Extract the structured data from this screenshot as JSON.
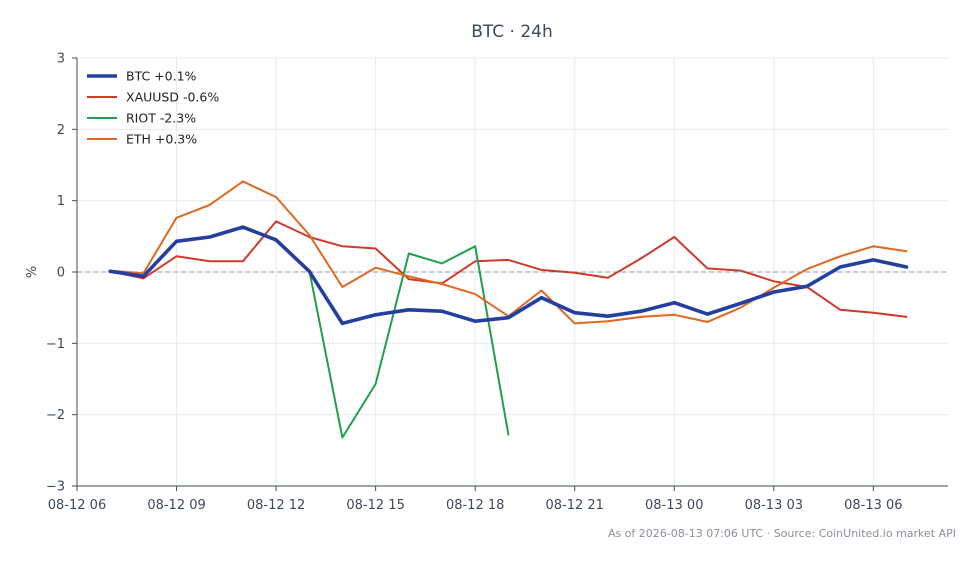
{
  "chart_data": {
    "type": "line",
    "title": "BTC · 24h",
    "xlabel": "",
    "ylabel": "%",
    "ylim": [
      -3,
      3
    ],
    "yticks": [
      -3,
      -2,
      -1,
      0,
      1,
      2,
      3
    ],
    "ytick_labels": [
      "−3",
      "−2",
      "−1",
      "0",
      "1",
      "2",
      "3"
    ],
    "xlim": [
      "2026-08-12 06:00",
      "2026-08-13 08:15"
    ],
    "xticks": [
      "2026-08-12 06:00",
      "2026-08-12 09:00",
      "2026-08-12 12:00",
      "2026-08-12 15:00",
      "2026-08-12 18:00",
      "2026-08-12 21:00",
      "2026-08-13 00:00",
      "2026-08-13 03:00",
      "2026-08-13 06:00"
    ],
    "xtick_labels": [
      "08-12 06",
      "08-12 09",
      "08-12 12",
      "08-12 15",
      "08-12 18",
      "08-12 21",
      "08-13 00",
      "08-13 03",
      "08-13 06"
    ],
    "x": [
      "2026-08-12 07:00",
      "2026-08-12 08:00",
      "2026-08-12 09:00",
      "2026-08-12 10:00",
      "2026-08-12 11:00",
      "2026-08-12 12:00",
      "2026-08-12 13:00",
      "2026-08-12 14:00",
      "2026-08-12 15:00",
      "2026-08-12 16:00",
      "2026-08-12 17:00",
      "2026-08-12 18:00",
      "2026-08-12 19:00",
      "2026-08-12 20:00",
      "2026-08-12 21:00",
      "2026-08-12 22:00",
      "2026-08-12 23:00",
      "2026-08-13 00:00",
      "2026-08-13 01:00",
      "2026-08-13 02:00",
      "2026-08-13 03:00",
      "2026-08-13 04:00",
      "2026-08-13 05:00",
      "2026-08-13 06:00",
      "2026-08-13 07:00"
    ],
    "grid": true,
    "reference_line": 0,
    "legend_position": "top-left",
    "series": [
      {
        "name": "BTC +0.1%",
        "color": "#2340a0",
        "values": [
          0.01,
          -0.06,
          0.43,
          0.49,
          0.63,
          0.45,
          0.01,
          -0.72,
          -0.6,
          -0.53,
          -0.55,
          -0.69,
          -0.64,
          -0.36,
          -0.57,
          -0.62,
          -0.55,
          -0.43,
          -0.59,
          -0.44,
          -0.28,
          -0.2,
          0.07,
          0.17,
          0.07
        ]
      },
      {
        "name": "XAUUSD -0.6%",
        "color": "#d03a2a",
        "values": [
          0.01,
          -0.09,
          0.22,
          0.15,
          0.15,
          0.71,
          0.49,
          0.36,
          0.33,
          -0.1,
          -0.16,
          0.15,
          0.17,
          0.03,
          -0.01,
          -0.08,
          0.19,
          0.49,
          0.05,
          0.02,
          -0.13,
          -0.21,
          -0.53,
          -0.57,
          -0.63
        ]
      },
      {
        "name": "RIOT -2.3%",
        "color": "#21a04c",
        "values": [
          null,
          null,
          null,
          null,
          null,
          null,
          0.02,
          -2.32,
          -1.57,
          0.26,
          0.12,
          0.36,
          -2.28,
          null,
          null,
          null,
          null,
          null,
          null,
          null,
          null,
          null,
          null,
          null,
          null
        ]
      },
      {
        "name": "ETH +0.3%",
        "color": "#e0671f",
        "values": [
          0.02,
          -0.02,
          0.76,
          0.94,
          1.27,
          1.05,
          0.52,
          -0.21,
          0.06,
          -0.06,
          -0.17,
          -0.31,
          -0.62,
          -0.26,
          -0.72,
          -0.69,
          -0.63,
          -0.6,
          -0.7,
          -0.5,
          -0.22,
          0.04,
          0.22,
          0.36,
          0.29
        ]
      }
    ],
    "footer": "As of 2026-08-13 07:06 UTC · Source: CoinUnited.io market API"
  }
}
